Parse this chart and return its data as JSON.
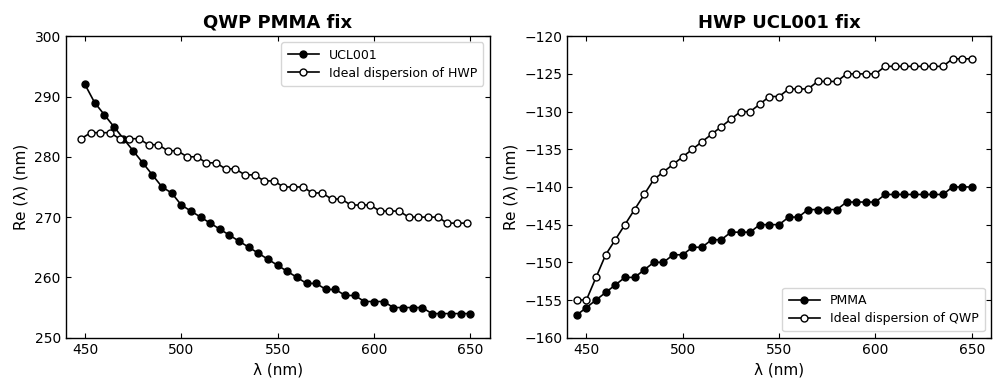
{
  "left_title": "QWP PMMA fix",
  "right_title": "HWP UCL001 fix",
  "xlabel": "λ (nm)",
  "ylabel": "Re (λ) (nm)",
  "left_ucl001_x": [
    450,
    455,
    460,
    465,
    470,
    475,
    480,
    485,
    490,
    495,
    500,
    505,
    510,
    515,
    520,
    525,
    530,
    535,
    540,
    545,
    550,
    555,
    560,
    565,
    570,
    575,
    580,
    585,
    590,
    595,
    600,
    605,
    610,
    615,
    620,
    625,
    630,
    635,
    640,
    645,
    650
  ],
  "left_ucl001_y": [
    292,
    289,
    287,
    285,
    283,
    281,
    279,
    277,
    275,
    274,
    272,
    271,
    270,
    269,
    268,
    267,
    266,
    265,
    264,
    263,
    262,
    261,
    260,
    259,
    259,
    258,
    258,
    257,
    257,
    256,
    256,
    256,
    255,
    255,
    255,
    255,
    254,
    254,
    254,
    254,
    254
  ],
  "left_ideal_x": [
    448,
    453,
    458,
    463,
    468,
    473,
    478,
    483,
    488,
    493,
    498,
    503,
    508,
    513,
    518,
    523,
    528,
    533,
    538,
    543,
    548,
    553,
    558,
    563,
    568,
    573,
    578,
    583,
    588,
    593,
    598,
    603,
    608,
    613,
    618,
    623,
    628,
    633,
    638,
    643,
    648
  ],
  "left_ideal_y": [
    283,
    284,
    284,
    284,
    283,
    283,
    283,
    282,
    282,
    281,
    281,
    280,
    280,
    279,
    279,
    278,
    278,
    277,
    277,
    276,
    276,
    275,
    275,
    275,
    274,
    274,
    273,
    273,
    272,
    272,
    272,
    271,
    271,
    271,
    270,
    270,
    270,
    270,
    269,
    269,
    269
  ],
  "right_pmma_x": [
    445,
    450,
    455,
    460,
    465,
    470,
    475,
    480,
    485,
    490,
    495,
    500,
    505,
    510,
    515,
    520,
    525,
    530,
    535,
    540,
    545,
    550,
    555,
    560,
    565,
    570,
    575,
    580,
    585,
    590,
    595,
    600,
    605,
    610,
    615,
    620,
    625,
    630,
    635,
    640,
    645,
    650
  ],
  "right_pmma_y": [
    -157,
    -156,
    -155,
    -154,
    -153,
    -152,
    -152,
    -151,
    -150,
    -150,
    -149,
    -149,
    -148,
    -148,
    -147,
    -147,
    -146,
    -146,
    -146,
    -145,
    -145,
    -145,
    -144,
    -144,
    -143,
    -143,
    -143,
    -143,
    -142,
    -142,
    -142,
    -142,
    -141,
    -141,
    -141,
    -141,
    -141,
    -141,
    -141,
    -140,
    -140,
    -140
  ],
  "right_ideal_x": [
    445,
    450,
    455,
    460,
    465,
    470,
    475,
    480,
    485,
    490,
    495,
    500,
    505,
    510,
    515,
    520,
    525,
    530,
    535,
    540,
    545,
    550,
    555,
    560,
    565,
    570,
    575,
    580,
    585,
    590,
    595,
    600,
    605,
    610,
    615,
    620,
    625,
    630,
    635,
    640,
    645,
    650
  ],
  "right_ideal_y": [
    -155,
    -155,
    -152,
    -149,
    -147,
    -145,
    -143,
    -141,
    -139,
    -138,
    -137,
    -136,
    -135,
    -134,
    -133,
    -132,
    -131,
    -130,
    -130,
    -129,
    -128,
    -128,
    -127,
    -127,
    -127,
    -126,
    -126,
    -126,
    -125,
    -125,
    -125,
    -125,
    -124,
    -124,
    -124,
    -124,
    -124,
    -124,
    -124,
    -123,
    -123,
    -123
  ],
  "left_ylim": [
    250,
    300
  ],
  "left_yticks": [
    250,
    260,
    270,
    280,
    290,
    300
  ],
  "left_xlim": [
    440,
    660
  ],
  "left_xticks": [
    450,
    500,
    550,
    600,
    650
  ],
  "right_ylim": [
    -160,
    -120
  ],
  "right_yticks": [
    -160,
    -155,
    -150,
    -145,
    -140,
    -135,
    -130,
    -125,
    -120
  ],
  "right_xlim": [
    440,
    660
  ],
  "right_xticks": [
    450,
    500,
    550,
    600,
    650
  ],
  "left_legend1": "UCL001",
  "left_legend2": "Ideal dispersion of HWP",
  "right_legend1": "PMMA",
  "right_legend2": "Ideal dispersion of QWP",
  "bg_color": "#ffffff",
  "line_color": "#000000"
}
